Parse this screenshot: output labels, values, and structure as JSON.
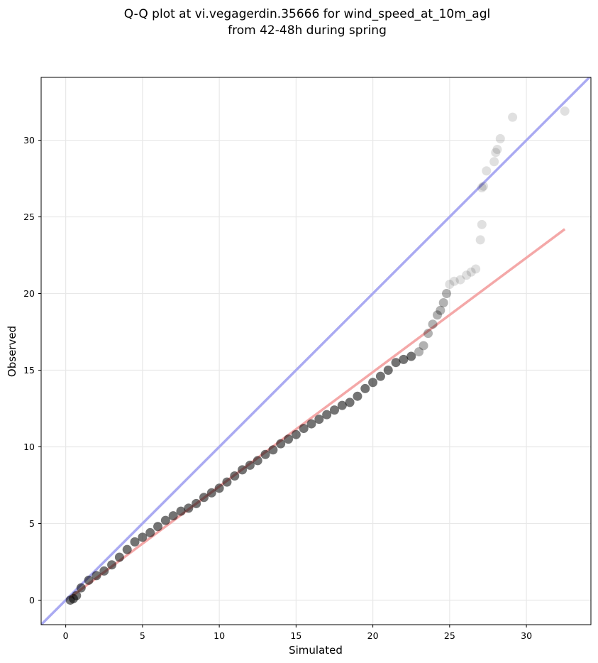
{
  "chart_data": {
    "type": "scatter",
    "title": "Q-Q plot at vi.vegagerdin.35666 for wind_speed_at_10m_agl",
    "subtitle": "from 42-48h during spring",
    "xlabel": "Simulated",
    "ylabel": "Observed",
    "xlim": [
      -1.6,
      34.2
    ],
    "ylim": [
      -1.6,
      34.1
    ],
    "xticks": [
      0,
      5,
      10,
      15,
      20,
      25,
      30
    ],
    "yticks": [
      0,
      5,
      10,
      15,
      20,
      25,
      30
    ],
    "grid": true,
    "colors": {
      "points": "#000000",
      "identity_line": "#aaaaf2",
      "fit_line": "#f4a8a8"
    },
    "identity_line": {
      "x": [
        -1.6,
        34.2
      ],
      "y": [
        -1.6,
        34.2
      ]
    },
    "fit_line": {
      "x": [
        0.3,
        32.5
      ],
      "y": [
        0.18,
        24.2
      ]
    },
    "quantiles": {
      "x": [
        0.3,
        0.5,
        0.7,
        1.0,
        1.5,
        2.0,
        2.5,
        3.0,
        3.5,
        4.0,
        4.5,
        5.0,
        5.5,
        6.0,
        6.5,
        7.0,
        7.5,
        8.0,
        8.5,
        9.0,
        9.5,
        10.0,
        10.5,
        11.0,
        11.5,
        12.0,
        12.5,
        13.0,
        13.5,
        14.0,
        14.5,
        15.0,
        15.5,
        16.0,
        16.5,
        17.0,
        17.5,
        18.0,
        18.5,
        19.0,
        19.5,
        20.0,
        20.5,
        21.0,
        21.5,
        22.0,
        22.5,
        23.0,
        23.3,
        23.6,
        23.9,
        24.2,
        24.4,
        24.6,
        24.8,
        25.0,
        25.3,
        25.7,
        26.1,
        26.4,
        26.7,
        27.0,
        27.1,
        27.1,
        27.2,
        27.4,
        27.9,
        28.0,
        28.1,
        28.3,
        29.1,
        32.5
      ],
      "y": [
        0.0,
        0.1,
        0.3,
        0.8,
        1.3,
        1.6,
        1.9,
        2.3,
        2.8,
        3.3,
        3.8,
        4.1,
        4.4,
        4.8,
        5.2,
        5.5,
        5.8,
        6.0,
        6.3,
        6.7,
        7.0,
        7.3,
        7.7,
        8.1,
        8.5,
        8.8,
        9.1,
        9.5,
        9.8,
        10.2,
        10.5,
        10.8,
        11.2,
        11.5,
        11.8,
        12.1,
        12.4,
        12.7,
        12.9,
        13.3,
        13.8,
        14.2,
        14.6,
        15.0,
        15.5,
        15.7,
        15.9,
        16.2,
        16.6,
        17.4,
        18.0,
        18.6,
        18.9,
        19.4,
        20.0,
        20.6,
        20.8,
        20.9,
        21.2,
        21.4,
        21.6,
        23.5,
        24.5,
        26.9,
        27.0,
        28.0,
        28.6,
        29.2,
        29.4,
        30.1,
        31.5,
        31.9
      ]
    }
  }
}
